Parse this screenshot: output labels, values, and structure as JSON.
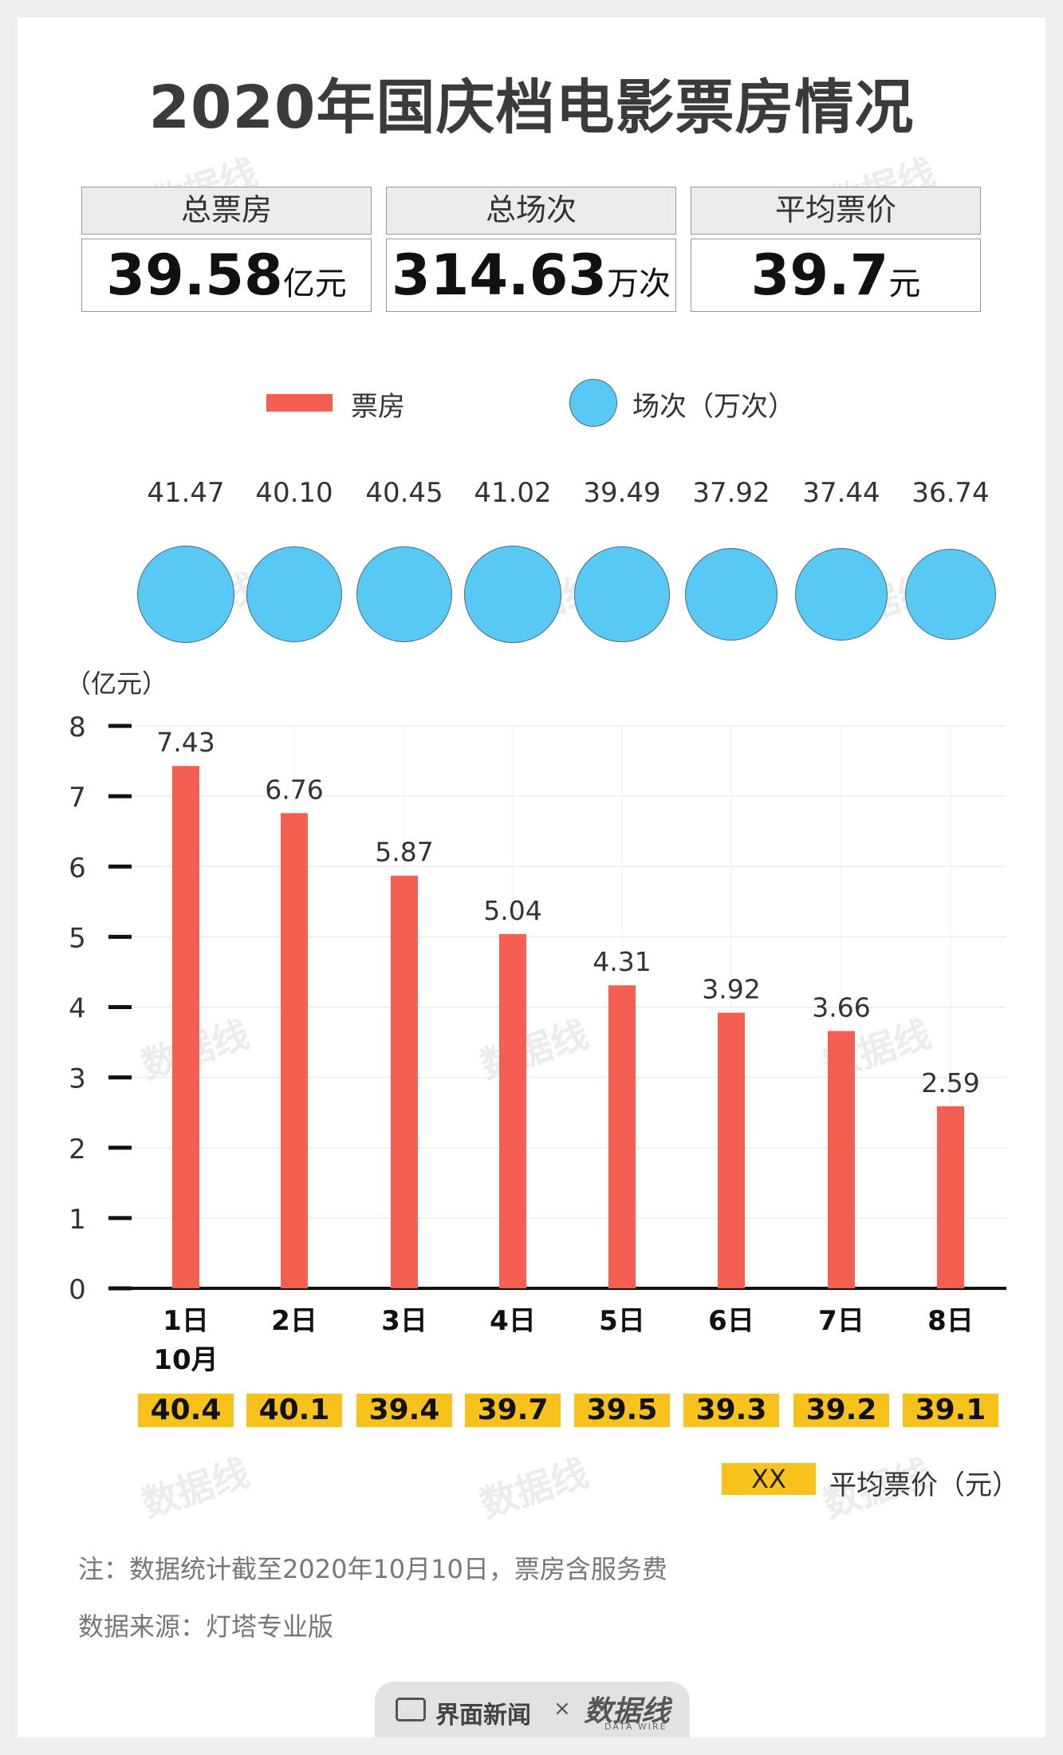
{
  "title": "2020年国庆档电影票房情况",
  "stats": [
    {
      "label": "总票房",
      "value": "39.58",
      "unit": "亿元"
    },
    {
      "label": "总场次",
      "value": "314.63",
      "unit": "万次"
    },
    {
      "label": "平均票价",
      "value": "39.7",
      "unit": "元"
    }
  ],
  "legend": {
    "box_office": "票房",
    "sessions": "场次（万次）",
    "price_sample": "XX",
    "price_label": "平均票价（元）"
  },
  "chart_data": {
    "type": "bar",
    "categories": [
      "1日",
      "2日",
      "3日",
      "4日",
      "5日",
      "6日",
      "7日",
      "8日"
    ],
    "month_label": "10月",
    "ylabel": "（亿元）",
    "ylim": [
      0,
      8
    ],
    "yticks": [
      "0",
      "1",
      "2",
      "3",
      "4",
      "5",
      "6",
      "7",
      "8"
    ],
    "series": [
      {
        "name": "票房",
        "values": [
          7.43,
          6.76,
          5.87,
          5.04,
          4.31,
          3.92,
          3.66,
          2.59
        ],
        "labels": [
          "7.43",
          "6.76",
          "5.87",
          "5.04",
          "4.31",
          "3.92",
          "3.66",
          "2.59"
        ]
      },
      {
        "name": "场次（万次）",
        "values": [
          41.47,
          40.1,
          40.45,
          41.02,
          39.49,
          37.92,
          37.44,
          36.74
        ],
        "labels": [
          "41.47",
          "40.10",
          "40.45",
          "41.02",
          "39.49",
          "37.92",
          "37.44",
          "36.74"
        ]
      },
      {
        "name": "平均票价（元）",
        "values": [
          40.4,
          40.1,
          39.4,
          39.7,
          39.5,
          39.3,
          39.2,
          39.1
        ],
        "labels": [
          "40.4",
          "40.1",
          "39.4",
          "39.7",
          "39.5",
          "39.3",
          "39.2",
          "39.1"
        ]
      }
    ],
    "grid": true,
    "colors": {
      "bar": "#f55f51",
      "circle": "#58c8f4",
      "price": "#f7c21b"
    }
  },
  "notes": {
    "note": "注：数据统计截至2020年10月10日，票房含服务费",
    "source": "数据来源：灯塔专业版"
  },
  "footer": {
    "brand": "界面新闻",
    "cross": "×",
    "partner": "数据线",
    "partner_en": "DATA WIRE"
  },
  "watermark": "数据线"
}
